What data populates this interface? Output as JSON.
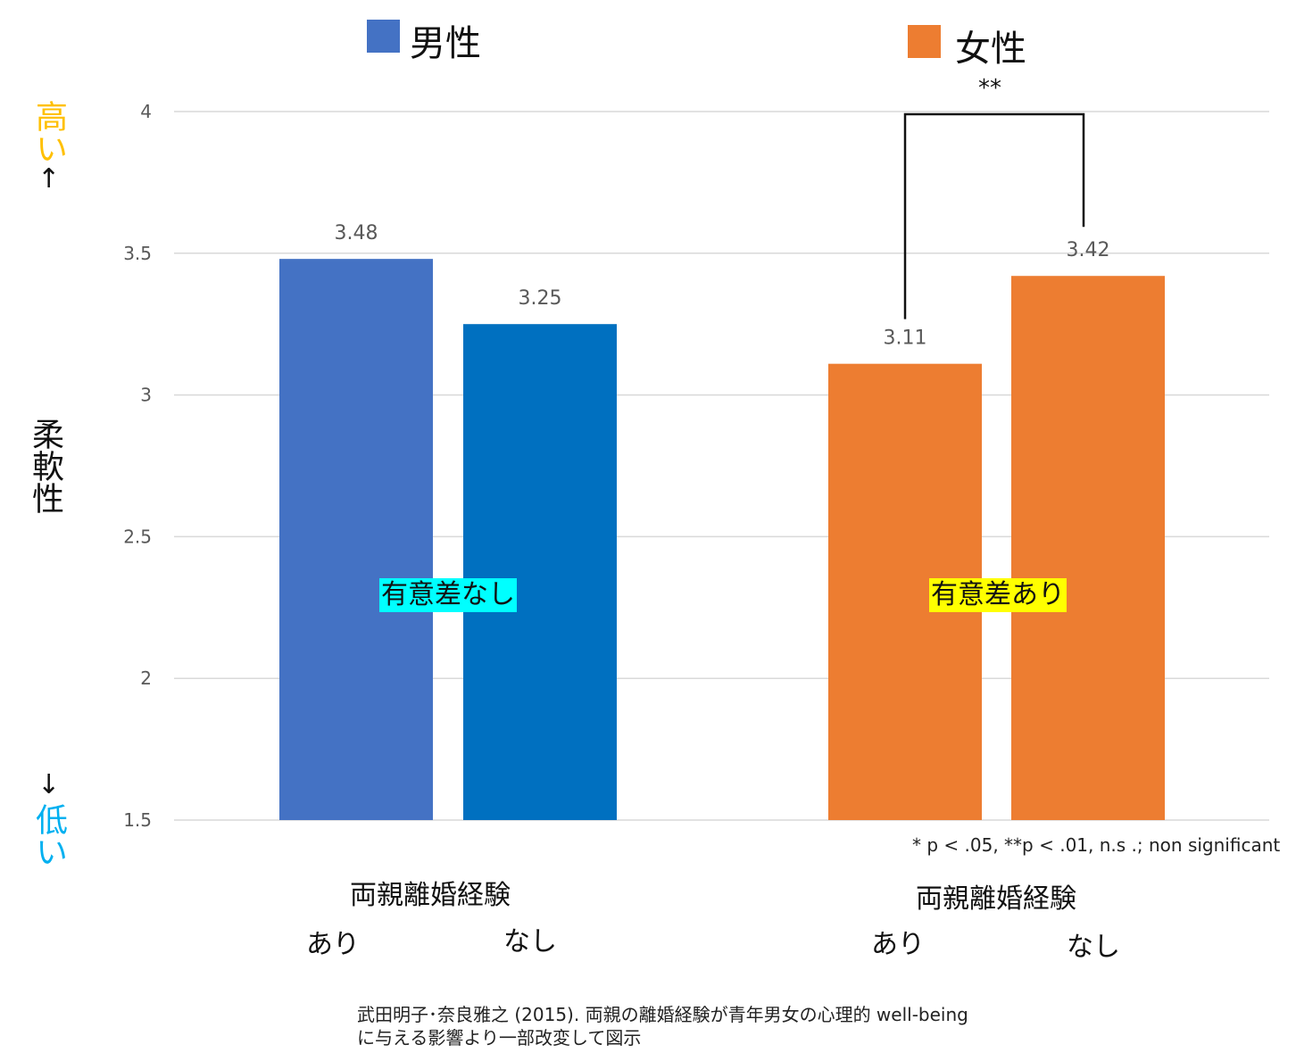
{
  "chart_data": {
    "type": "bar",
    "groups": [
      {
        "name": "男性",
        "color": "#4472C4",
        "bars": [
          {
            "category": "あり",
            "value": 3.48,
            "color": "#4472C4"
          },
          {
            "category": "なし",
            "value": 3.25,
            "color": "#0070C0"
          }
        ],
        "group_label": "両親離婚経験",
        "significance": "有意差なし",
        "significance_bg": "#00FFFF"
      },
      {
        "name": "女性",
        "color": "#ED7D31",
        "bars": [
          {
            "category": "あり",
            "value": 3.11,
            "color": "#ED7D31"
          },
          {
            "category": "なし",
            "value": 3.42,
            "color": "#ED7D31"
          }
        ],
        "group_label": "両親離婚経験",
        "significance": "有意差あり",
        "significance_bg": "#FFFF00"
      }
    ],
    "ylim": [
      1.5,
      4
    ],
    "yticks": [
      "1.5",
      "2",
      "2.5",
      "3",
      "3.5",
      "4"
    ],
    "ylabel": "柔軟性",
    "y_high": "高い",
    "y_low": "低い",
    "y_high_color": "#FFC000",
    "y_low_color": "#00B0F0",
    "bracket_label": "**",
    "grid": true,
    "legend_position": "top"
  },
  "footnote": "* p < .05, **p < .01, n.s .; non significant",
  "source_line1": "武田明子･奈良雅之 (2015). 両親の離婚経験が青年男女の心理的 well-being",
  "source_line2": "に与える影響より一部改変して図示"
}
